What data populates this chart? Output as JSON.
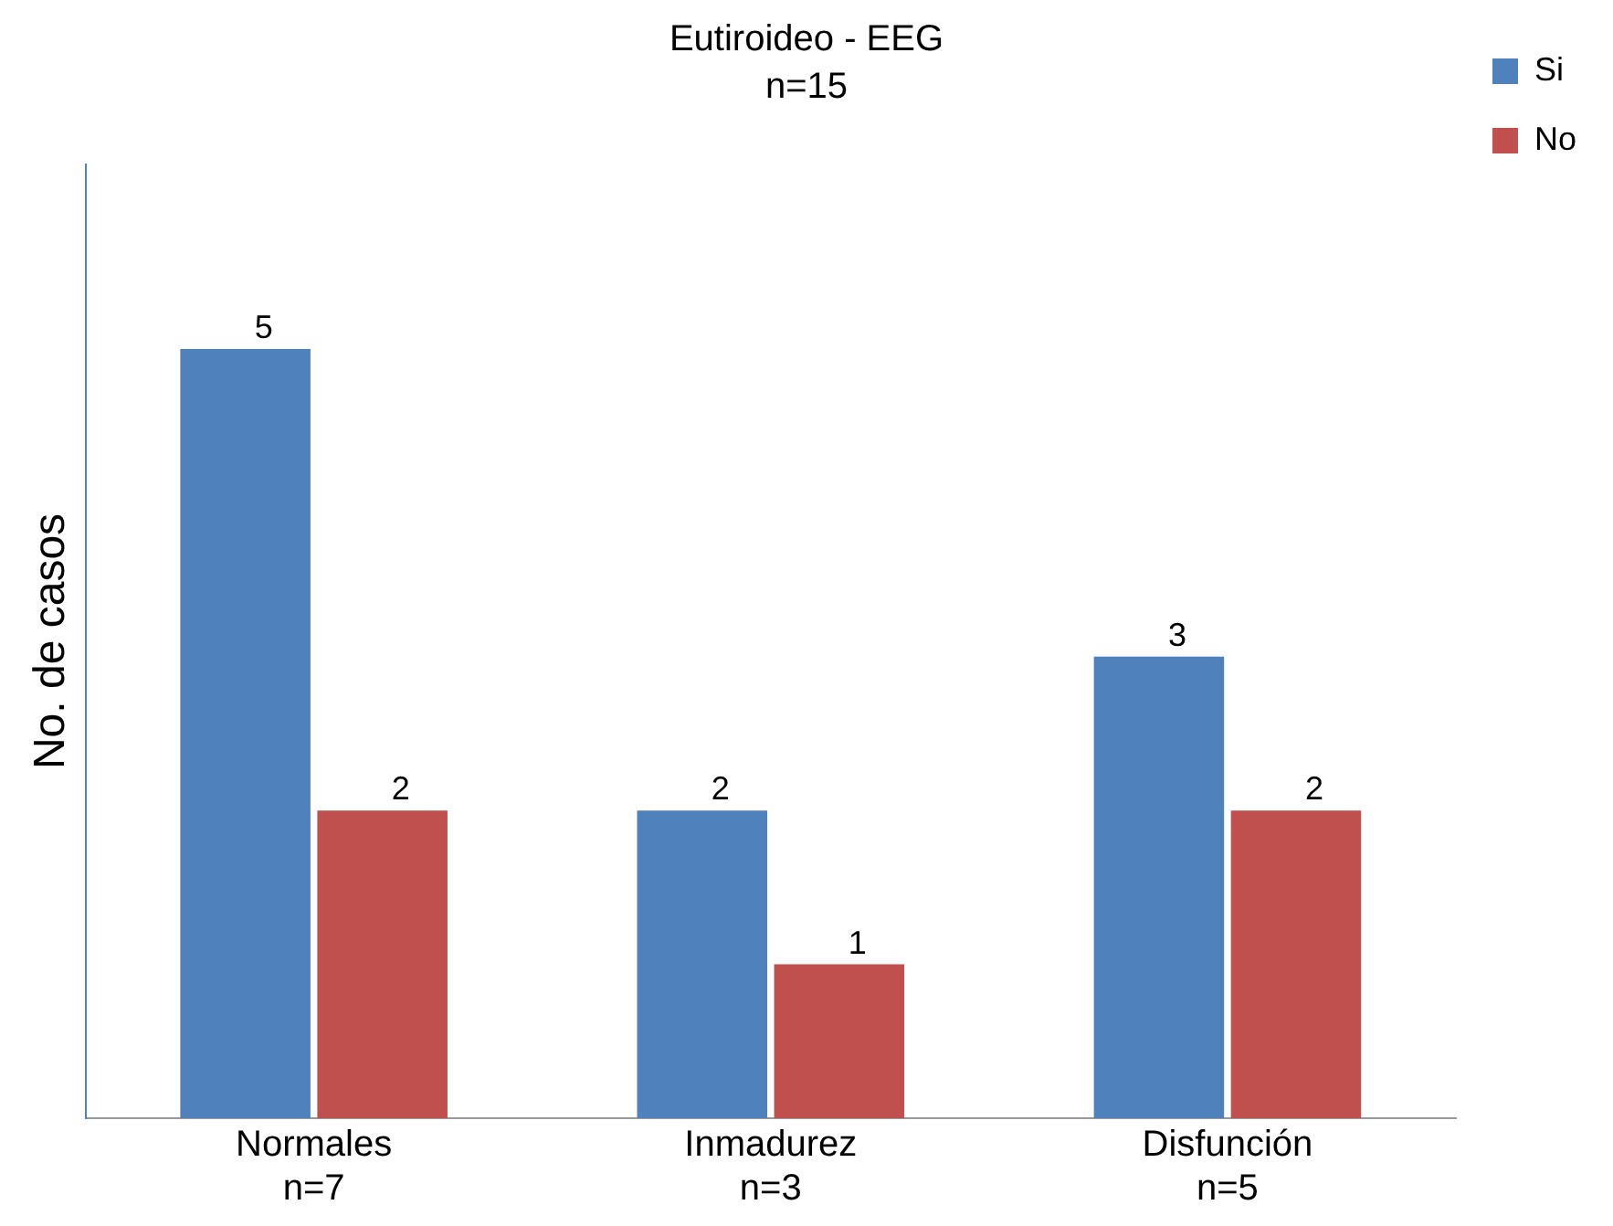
{
  "chart_data": {
    "type": "bar",
    "title": "Eutiroideo - EEG",
    "subtitle": "n=15",
    "ylabel": "No. de casos",
    "categories": [
      "Normales\nn=7",
      "Inmadurez\nn=3",
      "Disfunción\nn=5"
    ],
    "series": [
      {
        "name": "Si",
        "color": "#4f81bd",
        "values": [
          5,
          2,
          3
        ]
      },
      {
        "name": "No",
        "color": "#c0504d",
        "values": [
          2,
          1,
          2
        ]
      }
    ],
    "ylim": [
      0,
      6.2
    ],
    "tick_labels": "x",
    "grid": false,
    "legend": "top right",
    "data_labels": true
  }
}
